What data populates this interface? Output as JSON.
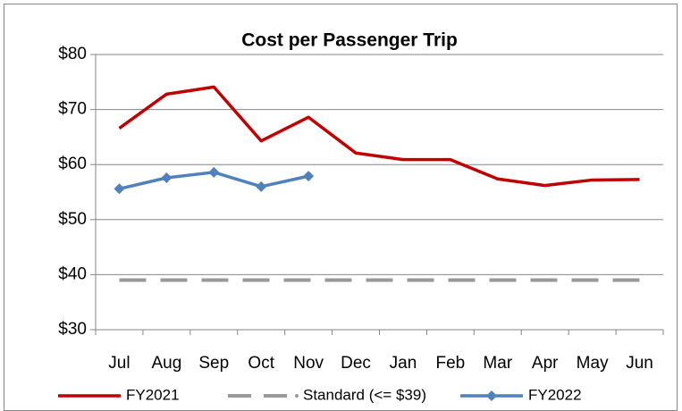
{
  "chart_data": {
    "type": "line",
    "title": "Cost per Passenger Trip",
    "categories": [
      "Jul",
      "Aug",
      "Sep",
      "Oct",
      "Nov",
      "Dec",
      "Jan",
      "Feb",
      "Mar",
      "Apr",
      "May",
      "Jun"
    ],
    "series": [
      {
        "name": "FY2021",
        "color": "#c00000",
        "values": [
          66.6,
          72.8,
          74.1,
          64.3,
          68.6,
          62.1,
          60.9,
          60.9,
          57.4,
          56.2,
          57.2,
          57.3
        ]
      },
      {
        "name": "Standard (<= $39)",
        "color": "#999999",
        "dashed": true,
        "values": [
          39,
          39,
          39,
          39,
          39,
          39,
          39,
          39,
          39,
          39,
          39,
          39
        ]
      },
      {
        "name": "FY2022",
        "color": "#4f81bd",
        "marker": "diamond",
        "values": [
          55.6,
          57.6,
          58.6,
          56.0,
          57.9,
          null,
          null,
          null,
          null,
          null,
          null,
          null
        ]
      }
    ],
    "ylim": [
      30,
      80
    ],
    "yticks": [
      {
        "value": 30,
        "label": "$30"
      },
      {
        "value": 40,
        "label": "$40"
      },
      {
        "value": 50,
        "label": "$50"
      },
      {
        "value": 60,
        "label": "$60"
      },
      {
        "value": 70,
        "label": "$70"
      },
      {
        "value": 80,
        "label": "$80"
      }
    ],
    "grid": true,
    "legend": "bottom"
  }
}
